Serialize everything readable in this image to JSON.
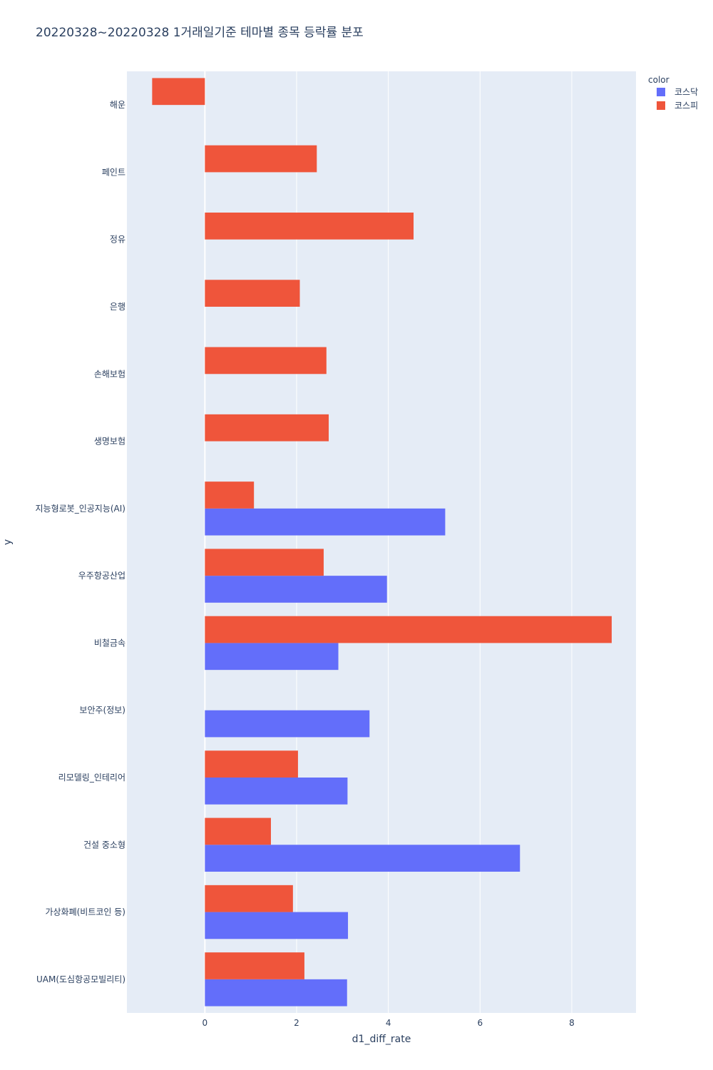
{
  "chart_data": {
    "type": "bar",
    "orientation": "horizontal",
    "barmode": "group",
    "title": "20220328~20220328 1거래일기준 테마별 종목 등락률 분포",
    "xlabel": "d1_diff_rate",
    "ylabel": "y",
    "xlim": [
      -1.7,
      9.4
    ],
    "x_ticks": [
      0,
      2,
      4,
      6,
      8
    ],
    "grid": true,
    "legend": {
      "title": "color",
      "position": "top-right"
    },
    "categories": [
      "해운",
      "페인트",
      "정유",
      "은행",
      "손해보험",
      "생명보험",
      "지능형로봇_인공지능(AI)",
      "우주항공산업",
      "비철금속",
      "보안주(정보)",
      "리모델링_인테리어",
      "건설 중소형",
      "가상화폐(비트코인 등)",
      "UAM(도심항공모빌리티)"
    ],
    "series": [
      {
        "name": "코스닥",
        "color": "#636efa",
        "values": [
          null,
          null,
          null,
          null,
          null,
          null,
          5.24,
          3.97,
          2.91,
          3.59,
          3.11,
          6.87,
          3.12,
          3.1
        ]
      },
      {
        "name": "코스피",
        "color": "#ef553b",
        "values": [
          -1.15,
          2.44,
          4.55,
          2.07,
          2.65,
          2.7,
          1.07,
          2.59,
          8.87,
          null,
          2.03,
          1.44,
          1.92,
          2.17
        ]
      }
    ]
  }
}
